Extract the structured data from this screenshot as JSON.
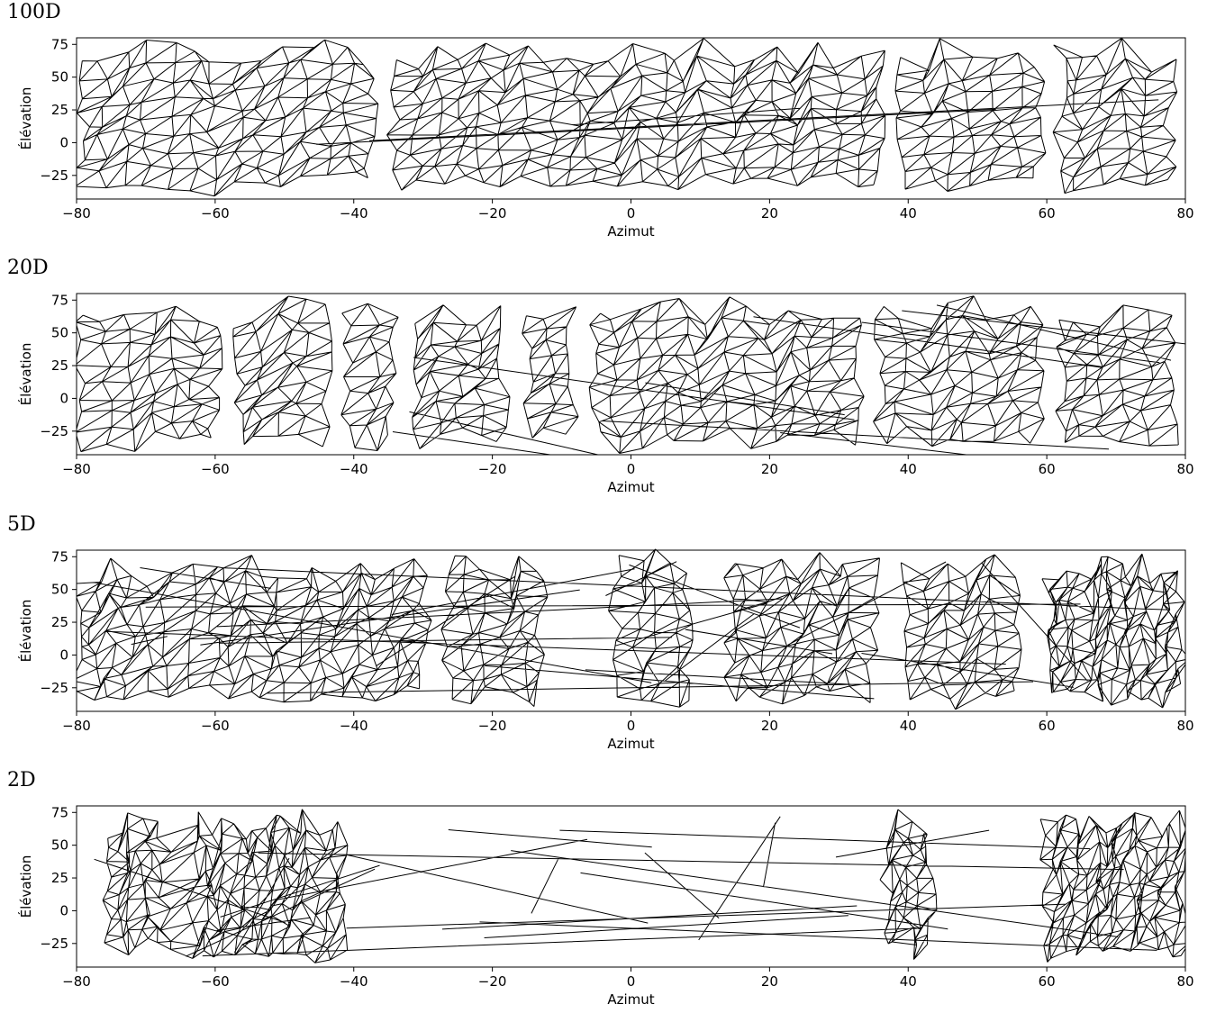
{
  "panels": [
    {
      "label": "100D",
      "pattern": "dense",
      "seed": 11
    },
    {
      "label": "20D",
      "pattern": "dense-with-streaks",
      "seed": 23
    },
    {
      "label": "5D",
      "pattern": "broken-with-long-edges",
      "seed": 37
    },
    {
      "label": "2D",
      "pattern": "sparse-with-long-edges",
      "seed": 51
    }
  ],
  "chart_data": [
    {
      "type": "mesh",
      "title": "100D",
      "xlabel": "Azimut",
      "ylabel": "Élévation",
      "xlim": [
        -80,
        80
      ],
      "ylim": [
        -43,
        80
      ],
      "xticks": [
        -80,
        -60,
        -40,
        -20,
        0,
        20,
        40,
        60,
        80
      ],
      "yticks": [
        -25,
        0,
        25,
        50,
        75
      ],
      "xtick_labels": [
        "−80",
        "−60",
        "−40",
        "−20",
        "0",
        "20",
        "40",
        "60",
        "80"
      ],
      "ytick_labels": [
        "−25",
        "0",
        "25",
        "50",
        "75"
      ]
    },
    {
      "type": "mesh",
      "title": "20D",
      "xlabel": "Azimut",
      "ylabel": "Élévation",
      "xlim": [
        -80,
        80
      ],
      "ylim": [
        -43,
        80
      ],
      "xticks": [
        -80,
        -60,
        -40,
        -20,
        0,
        20,
        40,
        60,
        80
      ],
      "yticks": [
        -25,
        0,
        25,
        50,
        75
      ],
      "xtick_labels": [
        "−80",
        "−60",
        "−40",
        "−20",
        "0",
        "20",
        "40",
        "60",
        "80"
      ],
      "ytick_labels": [
        "−25",
        "0",
        "25",
        "50",
        "75"
      ]
    },
    {
      "type": "mesh",
      "title": "5D",
      "xlabel": "Azimut",
      "ylabel": "Élévation",
      "xlim": [
        -80,
        80
      ],
      "ylim": [
        -43,
        80
      ],
      "xticks": [
        -80,
        -60,
        -40,
        -20,
        0,
        20,
        40,
        60,
        80
      ],
      "yticks": [
        -25,
        0,
        25,
        50,
        75
      ],
      "xtick_labels": [
        "−80",
        "−60",
        "−40",
        "−20",
        "0",
        "20",
        "40",
        "60",
        "80"
      ],
      "ytick_labels": [
        "−25",
        "0",
        "25",
        "50",
        "75"
      ]
    },
    {
      "type": "mesh",
      "title": "2D",
      "xlabel": "Azimut",
      "ylabel": "Élévation",
      "xlim": [
        -80,
        80
      ],
      "ylim": [
        -43,
        80
      ],
      "xticks": [
        -80,
        -60,
        -40,
        -20,
        0,
        20,
        40,
        60,
        80
      ],
      "yticks": [
        -25,
        0,
        25,
        50,
        75
      ],
      "xtick_labels": [
        "−80",
        "−60",
        "−40",
        "−20",
        "0",
        "20",
        "40",
        "60",
        "80"
      ],
      "ytick_labels": [
        "−25",
        "0",
        "25",
        "50",
        "75"
      ]
    }
  ]
}
